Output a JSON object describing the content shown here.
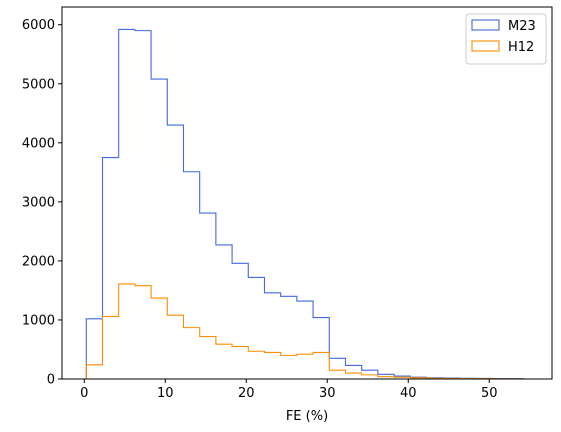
{
  "chart_data": {
    "type": "histogram-step",
    "xlabel": "FE (%)",
    "ylabel": "",
    "title": "",
    "xlim": [
      -2.75,
      57.75
    ],
    "ylim": [
      0,
      6300
    ],
    "xticks": [
      0,
      10,
      20,
      30,
      40,
      50
    ],
    "yticks": [
      0,
      1000,
      2000,
      3000,
      4000,
      5000,
      6000
    ],
    "legend_position": "top-right",
    "bin_edges": [
      0.25,
      2.25,
      4.25,
      6.25,
      8.25,
      10.25,
      12.25,
      14.25,
      16.25,
      18.25,
      20.25,
      22.25,
      24.25,
      26.25,
      28.25,
      30.25,
      32.25,
      34.25,
      36.25,
      38.25,
      40.25,
      42.25,
      44.25,
      46.25,
      48.25,
      50.25,
      52.25,
      54.25
    ],
    "series": [
      {
        "name": "M23",
        "color": "#4169e1",
        "values": [
          1020,
          3750,
          5920,
          5900,
          5080,
          4300,
          3510,
          2810,
          2270,
          1960,
          1720,
          1460,
          1400,
          1320,
          1040,
          350,
          230,
          150,
          80,
          50,
          30,
          20,
          15,
          12,
          10,
          8,
          5
        ]
      },
      {
        "name": "H12",
        "color": "#ff8c00",
        "values": [
          240,
          1060,
          1610,
          1580,
          1370,
          1080,
          870,
          720,
          590,
          550,
          470,
          450,
          400,
          420,
          450,
          150,
          100,
          70,
          40,
          30,
          20,
          12,
          10,
          8,
          6,
          4,
          2
        ]
      }
    ]
  }
}
